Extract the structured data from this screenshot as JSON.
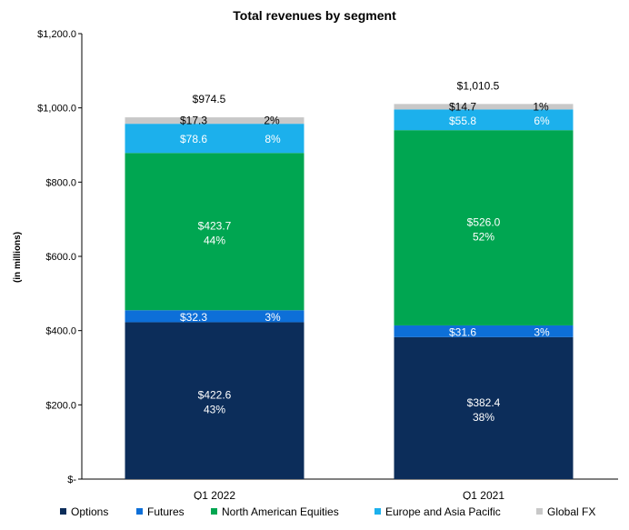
{
  "chart_data": {
    "type": "bar",
    "stacked": true,
    "title": "Total revenues by segment",
    "ylabel": "(in millions)",
    "xlabel": "",
    "ylim": [
      0,
      1200
    ],
    "yticks": [
      0,
      200,
      400,
      600,
      800,
      1000,
      1200
    ],
    "ytick_labels": [
      "$-",
      "$200.0",
      "$400.0",
      "$600.0",
      "$800.0",
      "$1,000.0",
      "$1,200.0"
    ],
    "categories": [
      "Q1 2022",
      "Q1 2021"
    ],
    "totals": [
      974.5,
      1010.5
    ],
    "total_labels": [
      "$974.5",
      "$1,010.5"
    ],
    "series": [
      {
        "name": "Options",
        "color": "#0c2d5a",
        "values": [
          422.6,
          382.4
        ],
        "labels": [
          "$422.6",
          "$382.4"
        ],
        "pcts": [
          "43%",
          "38%"
        ]
      },
      {
        "name": "Futures",
        "color": "#0d6fd8",
        "values": [
          32.3,
          31.6
        ],
        "labels": [
          "$32.3",
          "$31.6"
        ],
        "pcts": [
          "3%",
          "3%"
        ]
      },
      {
        "name": "North American Equities",
        "color": "#00a651",
        "values": [
          423.7,
          526.0
        ],
        "labels": [
          "$423.7",
          "$526.0"
        ],
        "pcts": [
          "44%",
          "52%"
        ]
      },
      {
        "name": "Europe and Asia Pacific",
        "color": "#1cb0ec",
        "values": [
          78.6,
          55.8
        ],
        "labels": [
          "$78.6",
          "$55.8"
        ],
        "pcts": [
          "8%",
          "6%"
        ]
      },
      {
        "name": "Global FX",
        "color": "#c8c8c8",
        "values": [
          17.3,
          14.7
        ],
        "labels": [
          "$17.3",
          "$14.7"
        ],
        "pcts": [
          "2%",
          "1%"
        ]
      }
    ]
  }
}
